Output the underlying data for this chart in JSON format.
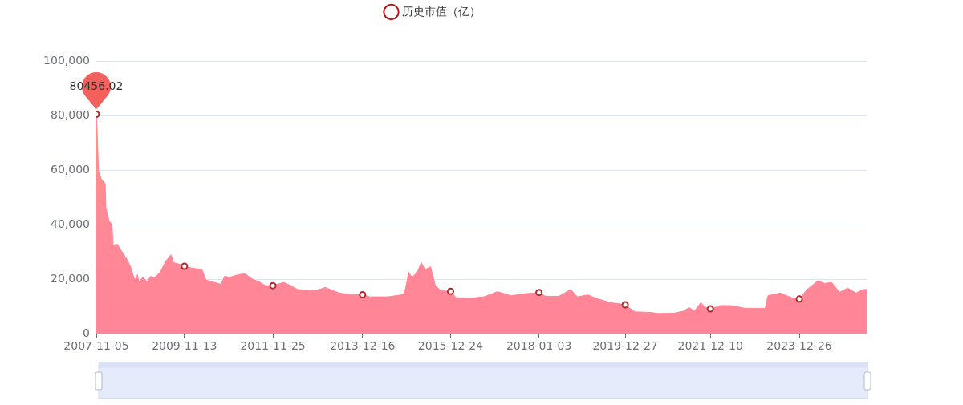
{
  "chart_data": {
    "type": "area",
    "x": [
      "2007-11-05",
      "2007-11-12",
      "2007-11-23",
      "2007-12-16",
      "2008-01-18",
      "2008-01-25",
      "2008-02-21",
      "2008-03-15",
      "2008-03-26",
      "2008-04-29",
      "2008-06-02",
      "2008-07-17",
      "2008-08-19",
      "2008-09-22",
      "2008-10-15",
      "2008-10-26",
      "2008-11-29",
      "2009-01-02",
      "2009-02-04",
      "2009-03-10",
      "2009-04-24",
      "2009-06-08",
      "2009-07-23",
      "2009-08-15",
      "2009-09-29",
      "2009-11-13",
      "2010-01-20",
      "2010-04-09",
      "2010-05-13",
      "2010-06-27",
      "2010-09-14",
      "2010-10-18",
      "2010-11-21",
      "2011-02-08",
      "2011-04-06",
      "2011-06-01",
      "2011-07-28",
      "2011-09-23",
      "2011-11-25",
      "2012-02-26",
      "2012-06-20",
      "2012-11-06",
      "2013-02-07",
      "2013-06-02",
      "2013-09-26",
      "2013-12-16",
      "2014-02-10",
      "2014-07-17",
      "2014-11-05",
      "2014-12-02",
      "2015-01-07",
      "2015-02-03",
      "2015-03-19",
      "2015-04-22",
      "2015-05-25",
      "2015-07-09",
      "2015-08-18",
      "2015-10-06",
      "2015-12-24",
      "2016-02-07",
      "2016-06-09",
      "2016-09-30",
      "2017-01-20",
      "2017-05-12",
      "2017-09-24",
      "2018-01-03",
      "2018-02-28",
      "2018-06-18",
      "2018-09-26",
      "2018-11-20",
      "2019-02-16",
      "2019-05-15",
      "2019-09-02",
      "2019-12-27",
      "2020-03-16",
      "2020-07-25",
      "2020-09-28",
      "2021-02-05",
      "2021-05-03",
      "2021-06-15",
      "2021-07-29",
      "2021-09-21",
      "2021-10-24",
      "2021-12-10",
      "2022-03-06",
      "2022-06-05",
      "2022-09-26",
      "2023-03-15",
      "2023-04-07",
      "2023-07-18",
      "2023-10-21",
      "2023-12-26",
      "2024-03-01",
      "2024-05-30",
      "2024-07-26",
      "2024-09-21",
      "2024-11-28",
      "2025-02-04",
      "2025-04-13",
      "2025-06-20",
      "2025-07-13"
    ],
    "series": [
      {
        "name": "历史市值（亿）",
        "color": "#ff8598",
        "values": [
          80456.02,
          74500,
          59800,
          56800,
          55000,
          46000,
          41200,
          40200,
          32300,
          32800,
          30400,
          27400,
          24500,
          19600,
          21600,
          19100,
          20600,
          19100,
          21000,
          20600,
          22500,
          26500,
          28900,
          26000,
          25500,
          24700,
          24000,
          23500,
          19600,
          19100,
          18100,
          21100,
          20600,
          21600,
          22000,
          20100,
          19100,
          17600,
          17600,
          18800,
          16200,
          15700,
          16900,
          14900,
          14200,
          14300,
          13500,
          13500,
          14200,
          14700,
          22500,
          20600,
          22500,
          26000,
          23500,
          24500,
          17600,
          15700,
          15500,
          13200,
          13000,
          13500,
          15400,
          13900,
          14700,
          15100,
          13700,
          13700,
          16200,
          13500,
          14200,
          12700,
          11300,
          10600,
          8000,
          7800,
          7400,
          7500,
          8300,
          9600,
          8300,
          11300,
          9800,
          9100,
          10300,
          10300,
          9300,
          9300,
          13900,
          14900,
          13200,
          12700,
          16200,
          19400,
          18400,
          18800,
          15200,
          16700,
          14900,
          16200,
          16200
        ]
      },
      {
        "type": "scatter",
        "color": "#b3262a",
        "marker": "circle",
        "x": [
          "2007-11-05",
          "2009-11-13",
          "2011-11-25",
          "2013-12-16",
          "2015-12-24",
          "2018-01-03",
          "2019-12-27",
          "2021-12-10",
          "2023-12-26"
        ],
        "values": [
          80456.02,
          24700,
          17600,
          14300,
          15500,
          15100,
          10600,
          9100,
          12700
        ]
      }
    ],
    "xlim": [
      "2007-11-05",
      "2025-07-13"
    ],
    "xticks": [
      "2007-11-05",
      "2009-11-13",
      "2011-11-25",
      "2013-12-16",
      "2015-12-24",
      "2018-01-03",
      "2019-12-27",
      "2021-12-10",
      "2023-12-26"
    ],
    "ylim": [
      0,
      100000
    ],
    "yticks": [
      0,
      {
        "value": 20000,
        "label": "20,000"
      },
      {
        "value": 40000,
        "label": "40,000"
      },
      {
        "value": 60000,
        "label": "60,000"
      },
      {
        "value": 80000,
        "label": "80,000"
      },
      {
        "value": 100000,
        "label": "100,000"
      }
    ],
    "grid": "y",
    "legend": "top",
    "annotations": [
      {
        "text": "80456.02",
        "x": "2007-11-05",
        "y": 80456.02
      }
    ]
  }
}
